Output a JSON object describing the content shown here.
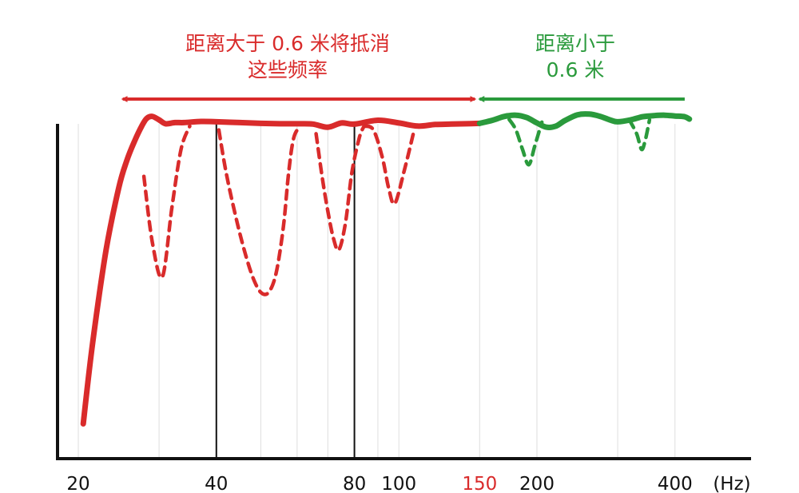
{
  "annotations": {
    "red": {
      "line1": "距离大于 0.6 米将抵消",
      "line2": "这些频率"
    },
    "green": {
      "line1": "距离小于",
      "line2": "0.6 米"
    }
  },
  "colors": {
    "red": "#d92b2b",
    "green": "#2a9a3c",
    "axis": "#111111",
    "grid": "#dedede",
    "marker_line": "#111111"
  },
  "chart_data": {
    "type": "line",
    "x_scale": "log",
    "xlim": [
      20,
      440
    ],
    "ylim": [
      0,
      100
    ],
    "x_unit_label": "(Hz)",
    "x_ticks": [
      {
        "value": 20,
        "label": "20",
        "color": "#111111"
      },
      {
        "value": 40,
        "label": "40",
        "color": "#111111"
      },
      {
        "value": 80,
        "label": "80",
        "color": "#111111"
      },
      {
        "value": 100,
        "label": "100",
        "color": "#111111"
      },
      {
        "value": 150,
        "label": "150",
        "color": "#d92b2b"
      },
      {
        "value": 200,
        "label": "200",
        "color": "#111111"
      },
      {
        "value": 400,
        "label": "400",
        "color": "#111111"
      }
    ],
    "grid_x": [
      20,
      30,
      40,
      50,
      60,
      70,
      80,
      90,
      100,
      150,
      200,
      300,
      400
    ],
    "marker_lines_x": [
      40,
      80
    ],
    "arrows": [
      {
        "name": "red-range",
        "from": 150,
        "to": 25,
        "two_headed": true,
        "color": "#d92b2b"
      },
      {
        "name": "green-range",
        "from": 420,
        "to": 150,
        "two_headed": false,
        "color": "#2a9a3c"
      }
    ],
    "series": [
      {
        "style": "solid",
        "color": "#d92b2b",
        "x": [
          20.5,
          21.5,
          23,
          24.5,
          25.5,
          26.5,
          27.5,
          28.2,
          29,
          30,
          31,
          32.5,
          34,
          37,
          40,
          45,
          50,
          55,
          60,
          65,
          70,
          75,
          80,
          90,
          100,
          110,
          120,
          130,
          140,
          150
        ],
        "y": [
          9,
          30,
          54,
          70,
          77,
          82,
          86,
          88,
          88.5,
          87.6,
          86.6,
          86.9,
          86.9,
          87.2,
          87.1,
          86.9,
          86.7,
          86.6,
          86.6,
          86.5,
          85.7,
          86.8,
          86.5,
          87.5,
          86.8,
          86.0,
          86.4,
          86.5,
          86.6,
          86.7
        ]
      },
      {
        "style": "dashed",
        "color": "#d92b2b",
        "x": [
          27.8,
          29,
          30.5,
          32,
          33.5,
          35
        ],
        "y": [
          73,
          56,
          47,
          65,
          80,
          86
        ]
      },
      {
        "style": "dashed",
        "color": "#d92b2b",
        "x": [
          40.5,
          42,
          44,
          46,
          48,
          50,
          52,
          54,
          56,
          57.5,
          59,
          61
        ],
        "y": [
          85,
          74,
          63,
          54,
          47,
          43,
          43,
          48,
          60,
          74,
          83,
          86
        ]
      },
      {
        "style": "dashed",
        "color": "#d92b2b",
        "x": [
          66,
          68,
          70,
          72,
          74,
          76.5,
          79,
          82,
          84
        ],
        "y": [
          84,
          73,
          64,
          57,
          54,
          61,
          74,
          83,
          86
        ]
      },
      {
        "style": "dashed",
        "color": "#d92b2b",
        "x": [
          84,
          88,
          92,
          95,
          98,
          103,
          108
        ],
        "y": [
          86,
          85,
          78,
          70,
          66,
          75,
          85
        ]
      },
      {
        "style": "solid",
        "color": "#2a9a3c",
        "x": [
          150,
          160,
          170,
          180,
          190,
          200,
          210,
          220,
          230,
          245,
          260,
          275,
          290,
          300,
          320,
          340,
          360,
          380,
          400,
          420,
          430
        ],
        "y": [
          86.7,
          87.5,
          88.5,
          88.8,
          88.2,
          86.8,
          85.7,
          86.0,
          87.4,
          88.9,
          89.1,
          88.5,
          87.5,
          87.1,
          87.6,
          88.4,
          88.7,
          88.8,
          88.6,
          88.4,
          87.8
        ]
      },
      {
        "style": "dashed",
        "color": "#2a9a3c",
        "x": [
          174,
          180,
          186,
          192,
          198,
          205
        ],
        "y": [
          87.7,
          85,
          80,
          76,
          81,
          87
        ]
      },
      {
        "style": "dashed",
        "color": "#2a9a3c",
        "x": [
          318,
          330,
          338,
          344,
          352
        ],
        "y": [
          87.6,
          84,
          80,
          82,
          87.6
        ]
      }
    ]
  }
}
